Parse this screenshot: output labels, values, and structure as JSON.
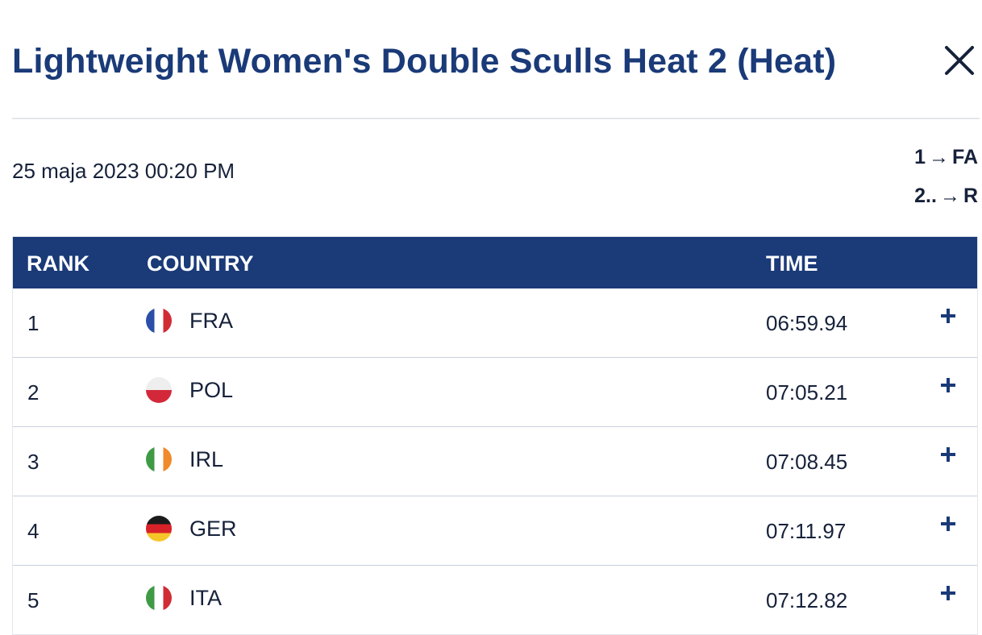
{
  "header": {
    "title": "Lightweight Women's Double Sculls Heat 2 (Heat)",
    "close_icon": "close-icon"
  },
  "meta": {
    "date": "25 maja 2023 00:20 PM",
    "progression": [
      {
        "from": "1",
        "to": "FA"
      },
      {
        "from": "2..",
        "to": "R"
      }
    ]
  },
  "table": {
    "headers": {
      "rank": "RANK",
      "country": "COUNTRY",
      "time": "TIME"
    },
    "rows": [
      {
        "rank": "1",
        "country": "FRA",
        "time": "06:59.94",
        "flag": [
          "#2b4fa8",
          "#ffffff",
          "#d12c34"
        ],
        "flag_dir": "vertical"
      },
      {
        "rank": "2",
        "country": "POL",
        "time": "07:05.21",
        "flag": [
          "#eeeeee",
          "#d3283a"
        ],
        "flag_dir": "horizontal"
      },
      {
        "rank": "3",
        "country": "IRL",
        "time": "07:08.45",
        "flag": [
          "#3f9a45",
          "#ffffff",
          "#f08a2b"
        ],
        "flag_dir": "vertical"
      },
      {
        "rank": "4",
        "country": "GER",
        "time": "07:11.97",
        "flag": [
          "#1b1b1b",
          "#d8222a",
          "#f6c628"
        ],
        "flag_dir": "horizontal"
      },
      {
        "rank": "5",
        "country": "ITA",
        "time": "07:12.82",
        "flag": [
          "#3f9a45",
          "#ffffff",
          "#d12c34"
        ],
        "flag_dir": "vertical"
      }
    ],
    "expand_icon": "plus-icon"
  },
  "colors": {
    "accent": "#1a3a78",
    "text": "#16213a",
    "divider": "#c9d0dc"
  }
}
